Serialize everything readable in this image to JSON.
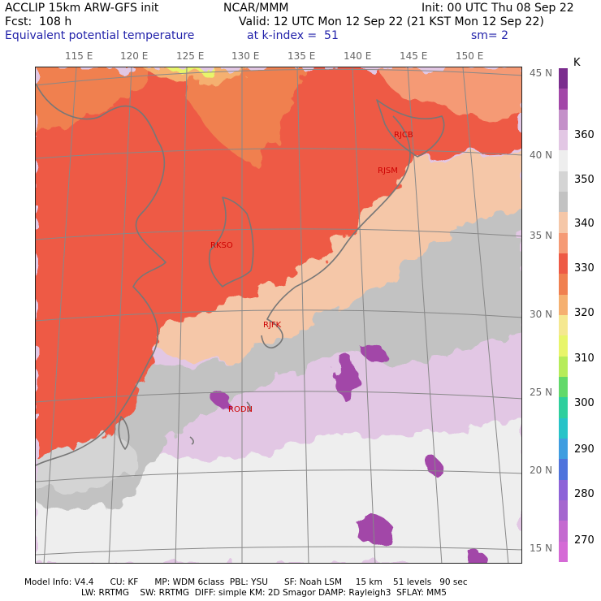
{
  "header": {
    "line1_left": "ACCLIP 15km ARW-GFS init",
    "line1_center": "NCAR/MMM",
    "line1_right": "Init: 00 UTC Thu 08 Sep 22",
    "line2_left": "Fcst:  108 h",
    "line2_right": "Valid: 12 UTC Mon 12 Sep 22 (21 KST Mon 12 Sep 22)",
    "line3_left": "Equivalent potential temperature",
    "line3_center": "at k-index =  51",
    "line3_right": "sm= 2"
  },
  "map": {
    "lon_labels": [
      "115 E",
      "120 E",
      "125 E",
      "130 E",
      "135 E",
      "140 E",
      "145 E",
      "150 E"
    ],
    "lat_labels": [
      "45 N",
      "40 N",
      "35 N",
      "30 N",
      "25 N",
      "20 N",
      "15 N"
    ],
    "stations": [
      {
        "id": "RJCB",
        "lon": 143.2,
        "lat": 42.7
      },
      {
        "id": "RJSM",
        "lon": 141.4,
        "lat": 40.7
      },
      {
        "id": "RKSO",
        "lon": 127.0,
        "lat": 37.1
      },
      {
        "id": "RJFK",
        "lon": 130.7,
        "lat": 31.8
      },
      {
        "id": "RODN",
        "lon": 127.8,
        "lat": 26.4
      }
    ],
    "colors": {
      "land_outline": "#777777",
      "grid": "#888888",
      "station_label": "#cc0000"
    }
  },
  "colorbar": {
    "unit": "K",
    "labels": [
      "360",
      "350",
      "340",
      "330",
      "320",
      "310",
      "300",
      "290",
      "280",
      "270"
    ],
    "colors": [
      "#7b2d8e",
      "#a247a8",
      "#c490c9",
      "#e2c7e4",
      "#eeeeee",
      "#d4d4d4",
      "#c2c2c2",
      "#f5c7a8",
      "#f59a75",
      "#ee5a45",
      "#f08050",
      "#f5b070",
      "#f5e890",
      "#e8f56a",
      "#b6ec5a",
      "#62d96a",
      "#2fcf9d",
      "#27c3c8",
      "#3f9de0",
      "#4f73dc",
      "#8d63d8",
      "#a467cf",
      "#c46ad0",
      "#d56ad6"
    ]
  },
  "footer": {
    "line1": "Model Info: V4.4      CU: KF      MP: WDM 6class  PBL: YSU      SF: Noah LSM     15 km    51 levels   90 sec",
    "line2": "LW: RRTMG    SW: RRTMG  DIFF: simple KM: 2D Smagor DAMP: Rayleigh3  SFLAY: MM5"
  }
}
